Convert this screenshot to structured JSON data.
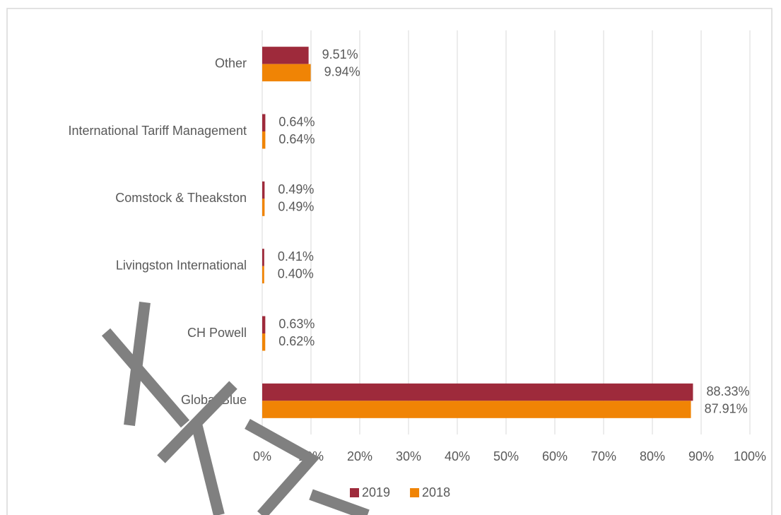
{
  "chart_data": {
    "type": "hbar",
    "categories": [
      "Other",
      "International Tariff Management",
      "Comstock & Theakston",
      "Livingston International",
      "CH Powell",
      "Global Blue"
    ],
    "series": [
      {
        "name": "2019",
        "color": "#9e2a3b",
        "values": [
          9.51,
          0.64,
          0.49,
          0.41,
          0.63,
          88.33
        ],
        "value_labels": [
          "9.51%",
          "0.64%",
          "0.49%",
          "0.41%",
          "0.63%",
          "88.33%"
        ]
      },
      {
        "name": "2018",
        "color": "#f08405",
        "values": [
          9.94,
          0.64,
          0.49,
          0.4,
          0.62,
          87.91
        ],
        "value_labels": [
          "9.94%",
          "0.64%",
          "0.49%",
          "0.40%",
          "0.62%",
          "87.91%"
        ]
      }
    ],
    "xlim": [
      0,
      100
    ],
    "xticks": [
      {
        "value": 0,
        "label": "0%"
      },
      {
        "value": 10,
        "label": "10%"
      },
      {
        "value": 20,
        "label": "20%"
      },
      {
        "value": 30,
        "label": "30%"
      },
      {
        "value": 40,
        "label": "40%"
      },
      {
        "value": 50,
        "label": "50%"
      },
      {
        "value": 60,
        "label": "60%"
      },
      {
        "value": 70,
        "label": "70%"
      },
      {
        "value": 80,
        "label": "80%"
      },
      {
        "value": 90,
        "label": "90%"
      },
      {
        "value": 100,
        "label": "100%"
      }
    ],
    "grid": true,
    "legend": "bottom"
  }
}
